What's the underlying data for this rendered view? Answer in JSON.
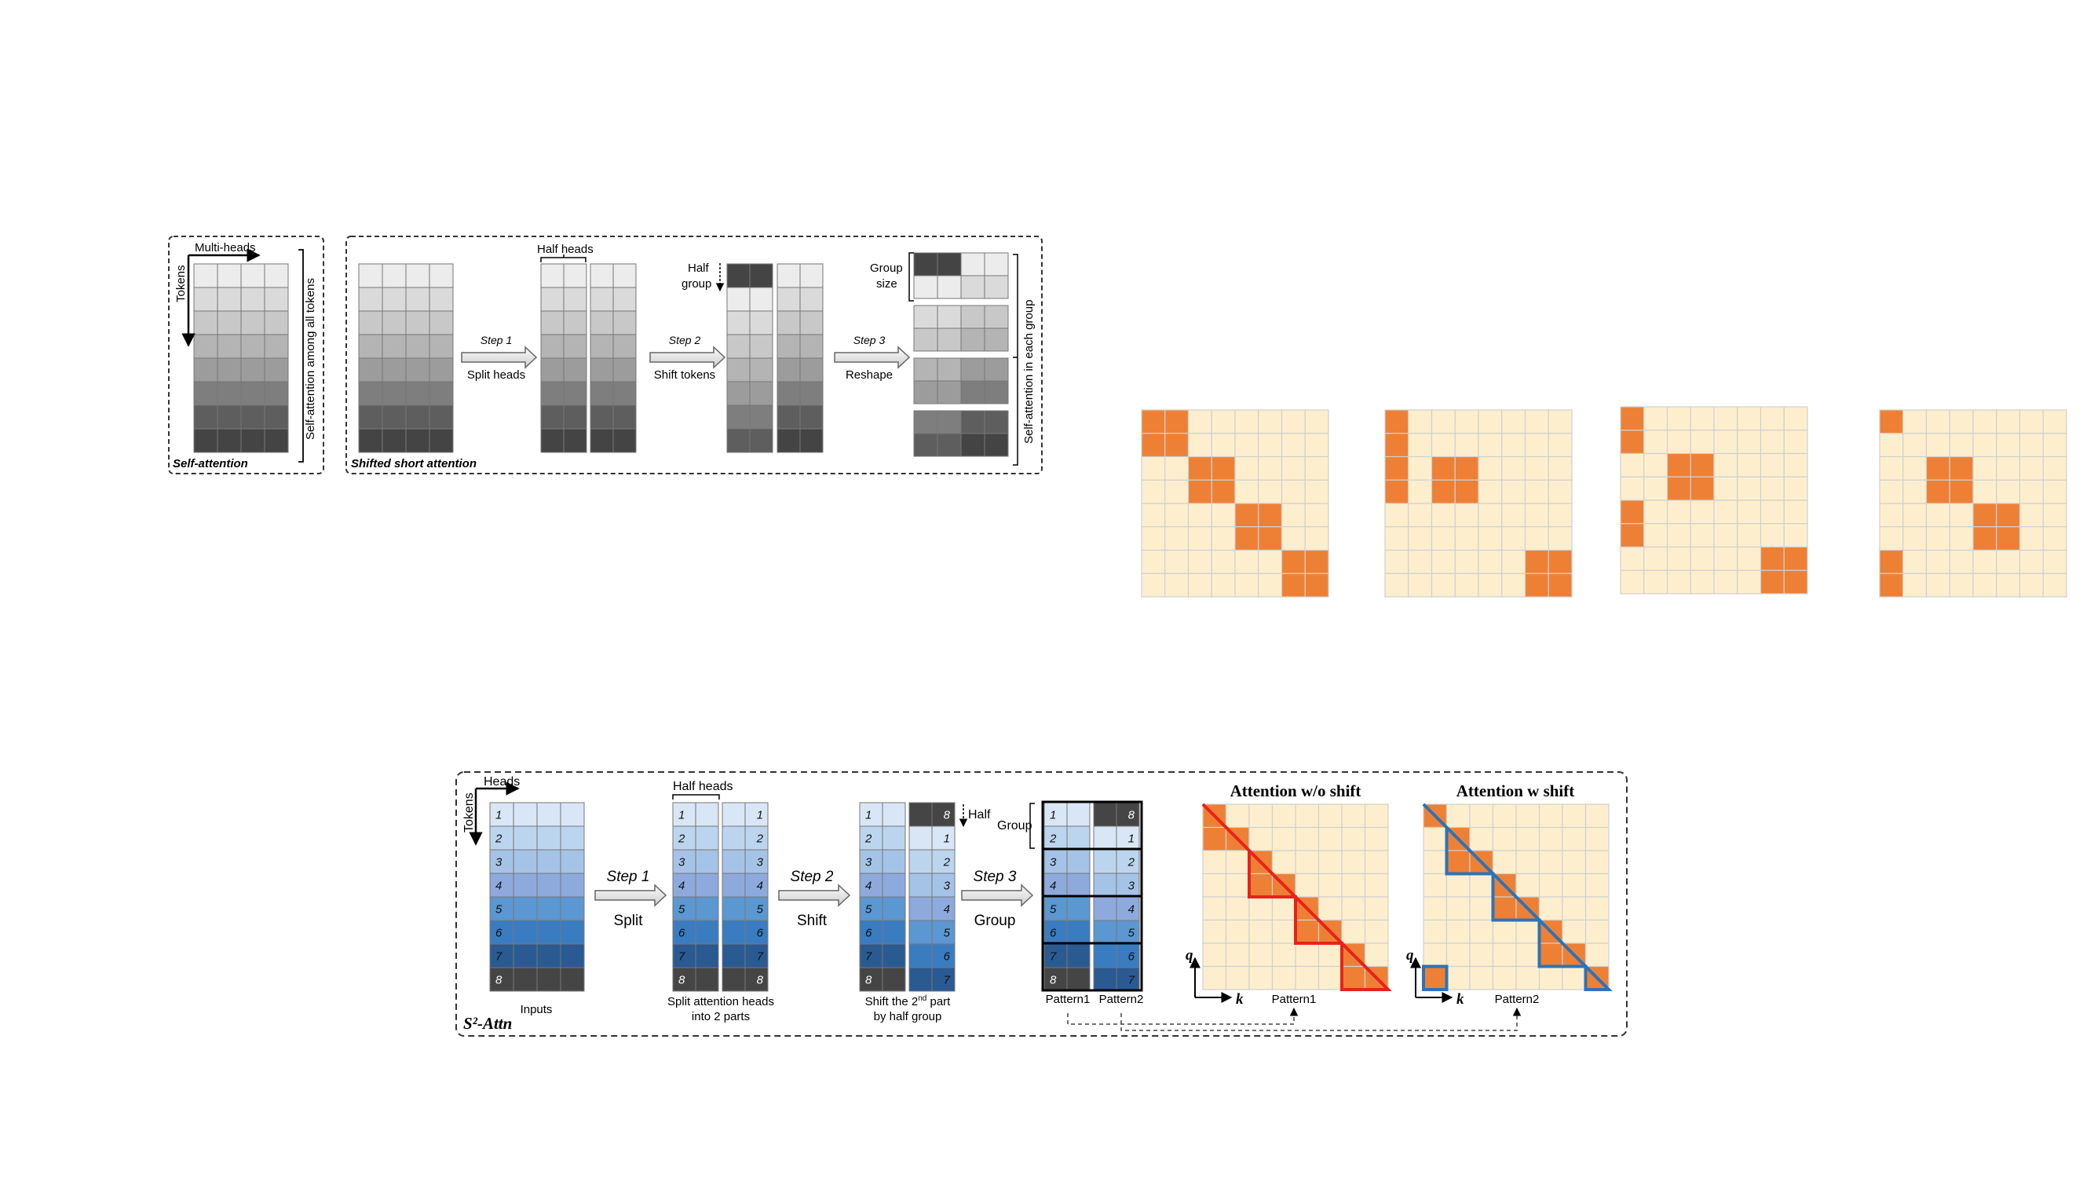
{
  "top": {
    "self_attention": {
      "caption": "Self-attention",
      "multi_heads": "Multi-heads",
      "tokens": "Tokens",
      "side_label": "Self-attention among all tokens"
    },
    "shifted": {
      "caption": "Shifted short attention",
      "half_heads": "Half heads",
      "half_group_1": "Half",
      "half_group_2": "group",
      "group_size_1": "Group",
      "group_size_2": "size",
      "side_label": "Self-attention in each group",
      "steps": [
        {
          "step": "Step 1",
          "action": "Split heads"
        },
        {
          "step": "Step 2",
          "action": "Shift tokens"
        },
        {
          "step": "Step 3",
          "action": "Reshape"
        }
      ]
    },
    "colors": {
      "gray_scale": [
        "#ececec",
        "#dadada",
        "#c8c8c8",
        "#b4b4b4",
        "#9c9c9c",
        "#7e7e7e",
        "#5e5e5e",
        "#444444"
      ]
    }
  },
  "masks": {
    "cell_color": "#fdefcd",
    "active_color": "#ee8035",
    "grid_color": "#d0d0d0"
  },
  "bottom": {
    "caption": "S²-Attn",
    "heads": "Heads",
    "tokens": "Tokens",
    "half_heads": "Half heads",
    "half": "Half",
    "group": "Group",
    "inputs_label": "Inputs",
    "split_label_1": "Split attention heads",
    "split_label_2": "into 2 parts",
    "shift_label_1": "Shift the 2",
    "shift_label_sup": "nd",
    "shift_label_1b": " part",
    "shift_label_2": "by half group",
    "pattern1": "Pattern1",
    "pattern2": "Pattern2",
    "steps": [
      {
        "step": "Step 1",
        "action": "Split"
      },
      {
        "step": "Step 2",
        "action": "Shift"
      },
      {
        "step": "Step 3",
        "action": "Group"
      }
    ],
    "row_numbers": [
      "1",
      "2",
      "3",
      "4",
      "5",
      "6",
      "7",
      "8"
    ],
    "shifted_numbers": [
      "8",
      "1",
      "2",
      "3",
      "4",
      "5",
      "6",
      "7"
    ],
    "attn_wo_shift": "Attention w/o shift",
    "attn_w_shift": "Attention w shift",
    "axis_q": "q",
    "axis_k": "k",
    "colors": {
      "blue_scale": [
        "#d9e6f5",
        "#bcd5ee",
        "#a5c3e7",
        "#8eaadd",
        "#5b97d1",
        "#3a7cc0",
        "#2a5a92",
        "#454545"
      ],
      "wo_shift_outline": "#e8221a",
      "w_shift_outline": "#2d73b6"
    }
  }
}
